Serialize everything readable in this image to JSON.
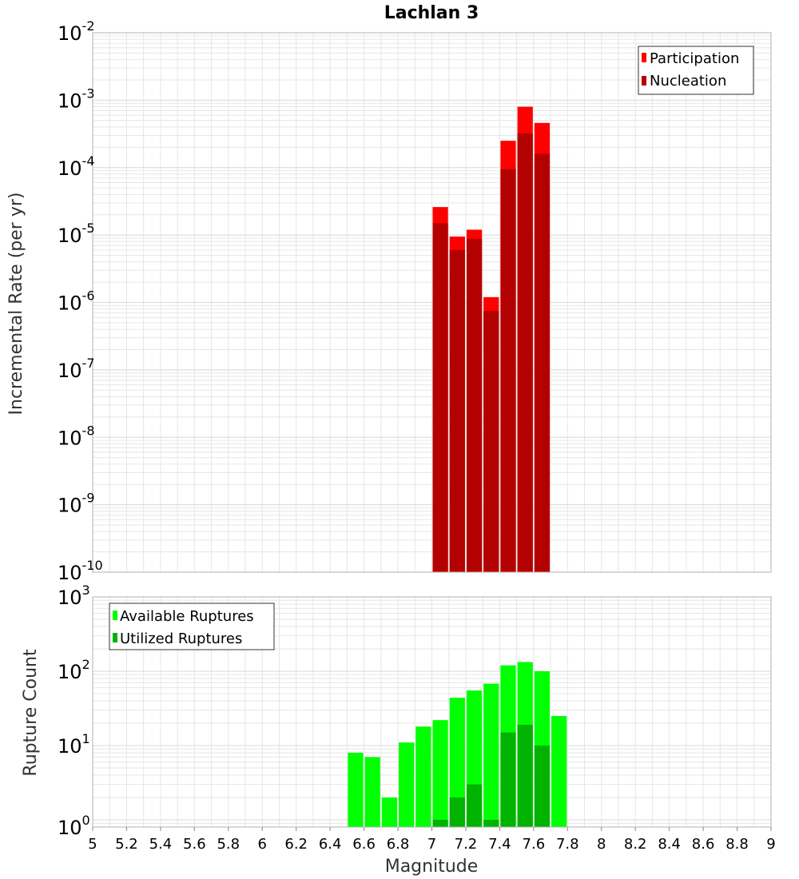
{
  "title": "Lachlan 3",
  "colors": {
    "participation": "#ff0000",
    "nucleation": "#b30000",
    "available": "#00ff00",
    "utilized": "#00b300",
    "grid": "#e6e6e6",
    "frame": "#b0b0b0"
  },
  "chart_data": [
    {
      "type": "bar",
      "panel": "top",
      "title": "Lachlan 3",
      "ylabel": "Incremental Rate (per yr)",
      "yscale": "log",
      "ylim": [
        1e-10,
        0.01
      ],
      "xlim": [
        5,
        9
      ],
      "bin_width": 0.1,
      "grid": true,
      "legend_position": "top-right",
      "ytick_labels": [
        {
          "base": "10",
          "exp": "-10"
        },
        {
          "base": "10",
          "exp": "-9"
        },
        {
          "base": "10",
          "exp": "-8"
        },
        {
          "base": "10",
          "exp": "-7"
        },
        {
          "base": "10",
          "exp": "-6"
        },
        {
          "base": "10",
          "exp": "-5"
        },
        {
          "base": "10",
          "exp": "-4"
        },
        {
          "base": "10",
          "exp": "-3"
        },
        {
          "base": "10",
          "exp": "-2"
        }
      ],
      "x": [
        7.05,
        7.15,
        7.25,
        7.35,
        7.45,
        7.55,
        7.65
      ],
      "series": [
        {
          "name": "Participation",
          "values": [
            2.6e-05,
            9.5e-06,
            1.2e-05,
            1.2e-06,
            0.00025,
            0.0008,
            0.00046
          ]
        },
        {
          "name": "Nucleation",
          "values": [
            1.5e-05,
            6e-06,
            8.8e-06,
            7.5e-07,
            9.5e-05,
            0.00032,
            0.00016
          ]
        }
      ]
    },
    {
      "type": "bar",
      "panel": "bottom",
      "xlabel": "Magnitude",
      "ylabel": "Rupture Count",
      "yscale": "log",
      "ylim": [
        0.8,
        1000
      ],
      "xlim": [
        5,
        9
      ],
      "bin_width": 0.1,
      "grid": true,
      "legend_position": "top-left",
      "ytick_labels": [
        {
          "base": "10",
          "exp": "0",
          "value": 1
        },
        {
          "base": "10",
          "exp": "1",
          "value": 10
        },
        {
          "base": "10",
          "exp": "2",
          "value": 100
        },
        {
          "base": "10",
          "exp": "3",
          "value": 1000
        }
      ],
      "xtick_labels": [
        "5",
        "5.2",
        "5.4",
        "5.6",
        "5.8",
        "6",
        "6.2",
        "6.4",
        "6.6",
        "6.8",
        "7",
        "7.2",
        "7.4",
        "7.6",
        "7.8",
        "8",
        "8.2",
        "8.4",
        "8.6",
        "8.8",
        "9"
      ],
      "x": [
        6.55,
        6.65,
        6.75,
        6.85,
        6.95,
        7.05,
        7.15,
        7.25,
        7.35,
        7.45,
        7.55,
        7.65,
        7.75
      ],
      "series": [
        {
          "name": "Available Ruptures",
          "values": [
            8,
            7,
            2,
            11,
            18,
            22,
            44,
            55,
            68,
            120,
            133,
            100,
            25
          ]
        },
        {
          "name": "Utilized Ruptures",
          "values": [
            0,
            0,
            0,
            0,
            0,
            1,
            2,
            3,
            1,
            15,
            19,
            10,
            0
          ]
        }
      ]
    }
  ]
}
